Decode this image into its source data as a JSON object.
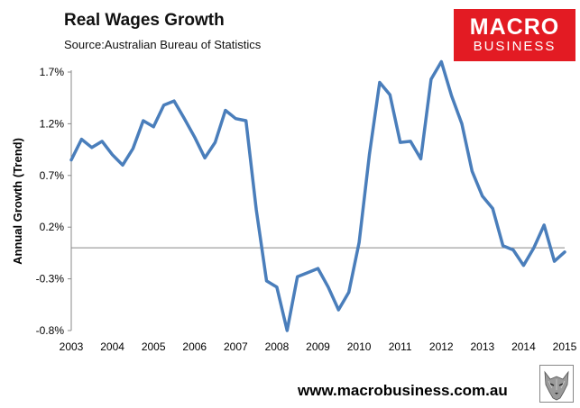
{
  "header": {
    "title": "Real Wages Growth",
    "subtitle": "Source:Australian Bureau of Statistics"
  },
  "logo": {
    "line1": "MACRO",
    "line2": "BUSINESS",
    "bg_color": "#e31b23"
  },
  "footer": {
    "url": "www.macrobusiness.com.au"
  },
  "chart_data": {
    "type": "line",
    "title": "Real Wages Growth",
    "xlabel": "",
    "ylabel": "Annual Growth (Trend)",
    "ylim": [
      -0.8,
      1.7
    ],
    "xlim": [
      2003,
      2015
    ],
    "yticks": [
      1.7,
      1.2,
      0.7,
      0.2,
      -0.3,
      -0.8
    ],
    "ytick_labels": [
      "1.7%",
      "1.2%",
      "0.7%",
      "0.2%",
      "-0.3%",
      "-0.8%"
    ],
    "xticks": [
      2003,
      2004,
      2005,
      2006,
      2007,
      2008,
      2009,
      2010,
      2011,
      2012,
      2013,
      2014,
      2015
    ],
    "xtick_labels": [
      "2003",
      "2004",
      "2005",
      "2006",
      "2007",
      "2008",
      "2009",
      "2010",
      "2011",
      "2012",
      "2013",
      "2014",
      "2015"
    ],
    "zero_line": 0,
    "series_color": "#4a7ebb",
    "series": [
      {
        "name": "Real Wages Growth",
        "x": [
          2003.0,
          2003.25,
          2003.5,
          2003.75,
          2004.0,
          2004.25,
          2004.5,
          2004.75,
          2005.0,
          2005.25,
          2005.5,
          2005.75,
          2006.0,
          2006.25,
          2006.5,
          2006.75,
          2007.0,
          2007.25,
          2007.5,
          2007.75,
          2008.0,
          2008.25,
          2008.5,
          2008.75,
          2009.0,
          2009.25,
          2009.5,
          2009.75,
          2010.0,
          2010.25,
          2010.5,
          2010.75,
          2011.0,
          2011.25,
          2011.5,
          2011.75,
          2012.0,
          2012.25,
          2012.5,
          2012.75,
          2013.0,
          2013.25,
          2013.5,
          2013.75,
          2014.0,
          2014.25,
          2014.5,
          2014.75,
          2015.0
        ],
        "values": [
          0.85,
          1.05,
          0.97,
          1.03,
          0.9,
          0.8,
          0.96,
          1.23,
          1.17,
          1.38,
          1.42,
          1.25,
          1.07,
          0.87,
          1.02,
          1.33,
          1.25,
          1.23,
          0.37,
          -0.32,
          -0.38,
          -0.8,
          -0.28,
          -0.24,
          -0.2,
          -0.38,
          -0.6,
          -0.43,
          0.05,
          0.9,
          1.6,
          1.48,
          1.02,
          1.03,
          0.86,
          1.63,
          1.8,
          1.47,
          1.2,
          0.74,
          0.5,
          0.38,
          0.02,
          -0.02,
          -0.17,
          0.0,
          0.22,
          -0.13,
          -0.04
        ]
      }
    ]
  }
}
